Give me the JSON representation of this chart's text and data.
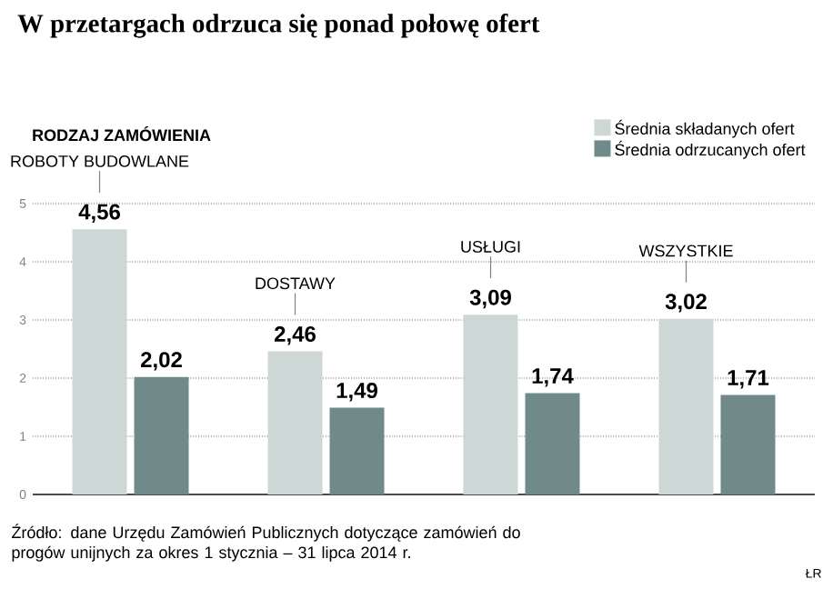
{
  "chart_data": {
    "type": "bar",
    "title": "W przetargach odrzuca się ponad połowę ofert",
    "subtitle": "RODZAJ ZAMÓWIENIA",
    "categories": [
      "ROBOTY BUDOWLANE",
      "DOSTAWY",
      "USŁUGI",
      "WSZYSTKIE"
    ],
    "series": [
      {
        "name": "Średnia składanych ofert",
        "color": "#cdd8d6",
        "values": [
          4.56,
          2.46,
          3.09,
          3.02
        ],
        "value_labels": [
          "4,56",
          "2,46",
          "3,09",
          "3,02"
        ]
      },
      {
        "name": "Średnia odrzucanych ofert",
        "color": "#6f8a89",
        "values": [
          2.02,
          1.49,
          1.74,
          1.71
        ],
        "value_labels": [
          "2,02",
          "1,49",
          "1,74",
          "1,71"
        ]
      }
    ],
    "ylim": [
      0,
      5
    ],
    "yticks": [
      0,
      1,
      2,
      3,
      4,
      5
    ],
    "grid": "y",
    "legend": "top right",
    "annotations": [
      "Źródło: dane Urzędu Zamówień Publicznych dotyczące zamówień do progów unijnych za okres 1 stycznia – 31 lipca 2014 r.",
      "ŁR"
    ]
  }
}
